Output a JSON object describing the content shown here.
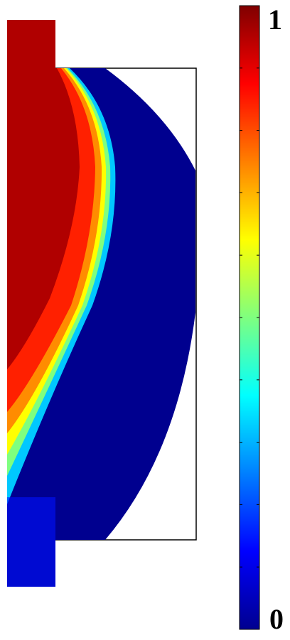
{
  "chart_data": {
    "type": "heatmap",
    "title": "",
    "xlabel": "",
    "ylabel": "",
    "colormap": "jet",
    "colorbar": {
      "min": 0,
      "max": 1,
      "min_label": "0",
      "max_label": "1",
      "tick_count": 11
    },
    "field": {
      "description": "",
      "high_value": 1,
      "low_value": 0
    }
  }
}
